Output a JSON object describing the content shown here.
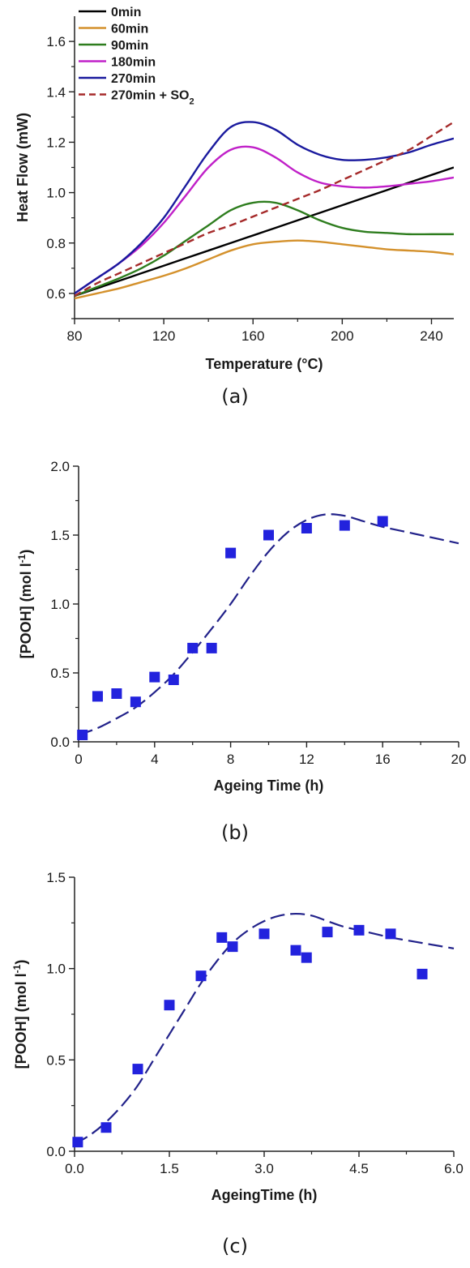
{
  "chart_data": [
    {
      "type": "line",
      "caption": "(a)",
      "xlabel": "Temperature (°C)",
      "ylabel": "Heat Flow (mW)",
      "xlim": [
        80,
        250
      ],
      "ylim": [
        0.5,
        1.7
      ],
      "xticks": [
        80,
        120,
        160,
        200,
        240
      ],
      "yticks": [
        0.6,
        0.8,
        1.0,
        1.2,
        1.4,
        1.6
      ],
      "grid": false,
      "legend_position": "top-left",
      "x": [
        80,
        90,
        100,
        110,
        120,
        130,
        140,
        150,
        160,
        170,
        180,
        190,
        200,
        210,
        220,
        230,
        240,
        250
      ],
      "series": [
        {
          "name": "0min",
          "color": "#000000",
          "dash": "solid",
          "values": [
            0.59,
            0.62,
            0.65,
            0.68,
            0.71,
            0.74,
            0.77,
            0.8,
            0.83,
            0.86,
            0.89,
            0.92,
            0.95,
            0.98,
            1.01,
            1.04,
            1.07,
            1.1
          ]
        },
        {
          "name": "60min",
          "color": "#d4912c",
          "dash": "solid",
          "values": [
            0.58,
            0.6,
            0.62,
            0.645,
            0.67,
            0.7,
            0.735,
            0.77,
            0.795,
            0.805,
            0.81,
            0.805,
            0.795,
            0.785,
            0.775,
            0.77,
            0.765,
            0.755
          ]
        },
        {
          "name": "90min",
          "color": "#2e7d1e",
          "dash": "solid",
          "values": [
            0.59,
            0.625,
            0.66,
            0.7,
            0.75,
            0.81,
            0.87,
            0.93,
            0.96,
            0.96,
            0.93,
            0.89,
            0.86,
            0.845,
            0.84,
            0.835,
            0.835,
            0.835
          ]
        },
        {
          "name": "180min",
          "color": "#c020c8",
          "dash": "solid",
          "values": [
            0.6,
            0.66,
            0.72,
            0.79,
            0.88,
            0.99,
            1.1,
            1.17,
            1.18,
            1.14,
            1.08,
            1.04,
            1.025,
            1.02,
            1.025,
            1.035,
            1.045,
            1.06
          ]
        },
        {
          "name": "270min",
          "color": "#1a1a9e",
          "dash": "solid",
          "values": [
            0.6,
            0.66,
            0.72,
            0.8,
            0.9,
            1.03,
            1.16,
            1.26,
            1.28,
            1.25,
            1.19,
            1.15,
            1.13,
            1.13,
            1.14,
            1.16,
            1.19,
            1.215
          ]
        },
        {
          "name": "270min + SO",
          "name_sub": "2",
          "color": "#a52a2a",
          "dash": "dashed",
          "values": [
            0.59,
            0.64,
            0.68,
            0.72,
            0.76,
            0.8,
            0.84,
            0.87,
            0.905,
            0.94,
            0.975,
            1.01,
            1.05,
            1.09,
            1.13,
            1.17,
            1.225,
            1.28
          ]
        }
      ]
    },
    {
      "type": "scatter",
      "caption": "(b)",
      "xlabel": "Ageing Time (h)",
      "ylabel": "[POOH] (mol l",
      "ylabel_sup": "-1",
      "ylabel_close": ")",
      "xlim": [
        0,
        20
      ],
      "ylim": [
        0,
        2.0
      ],
      "xticks": [
        0,
        4,
        8,
        12,
        16,
        20
      ],
      "yticks": [
        0.0,
        0.5,
        1.0,
        1.5,
        2.0
      ],
      "grid": false,
      "marker_color": "#2222dd",
      "points": {
        "x": [
          0.2,
          1,
          2,
          3,
          4,
          5,
          6,
          7,
          8,
          10,
          12,
          14,
          16
        ],
        "y": [
          0.05,
          0.33,
          0.35,
          0.29,
          0.47,
          0.45,
          0.68,
          0.68,
          1.37,
          1.5,
          1.55,
          1.57,
          1.6
        ]
      },
      "fit": {
        "color": "#22228a",
        "x": [
          0,
          1,
          2,
          3,
          4,
          5,
          6,
          7,
          8,
          9,
          10,
          11,
          12,
          13,
          14,
          15,
          16,
          17,
          18,
          19,
          20
        ],
        "y": [
          0.05,
          0.1,
          0.17,
          0.25,
          0.36,
          0.49,
          0.65,
          0.82,
          1.0,
          1.2,
          1.38,
          1.52,
          1.61,
          1.65,
          1.64,
          1.6,
          1.56,
          1.53,
          1.5,
          1.47,
          1.44
        ]
      }
    },
    {
      "type": "scatter",
      "caption": "(c)",
      "xlabel": "AgeingTime (h)",
      "ylabel": "[POOH] (mol l",
      "ylabel_sup": "-1",
      "ylabel_close": ")",
      "xlim": [
        0,
        6.0
      ],
      "ylim": [
        0,
        1.5
      ],
      "xticks": [
        0.0,
        1.5,
        3.0,
        4.5,
        6.0
      ],
      "yticks": [
        0.0,
        0.5,
        1.0,
        1.5
      ],
      "grid": false,
      "marker_color": "#2222dd",
      "points": {
        "x": [
          0.05,
          0.5,
          1.0,
          1.5,
          2.0,
          2.33,
          2.5,
          3.0,
          3.5,
          3.67,
          4.0,
          4.5,
          5.0,
          5.5
        ],
        "y": [
          0.05,
          0.13,
          0.45,
          0.8,
          0.96,
          1.17,
          1.12,
          1.19,
          1.1,
          1.06,
          1.2,
          1.21,
          1.19,
          0.97
        ]
      },
      "fit": {
        "color": "#22228a",
        "x": [
          0,
          0.25,
          0.5,
          0.75,
          1.0,
          1.25,
          1.5,
          1.75,
          2.0,
          2.25,
          2.5,
          2.75,
          3.0,
          3.25,
          3.5,
          3.75,
          4.0,
          4.25,
          4.5,
          4.75,
          5.0,
          5.25,
          5.5,
          5.75,
          6.0
        ],
        "y": [
          0.04,
          0.09,
          0.16,
          0.25,
          0.36,
          0.5,
          0.64,
          0.78,
          0.92,
          1.04,
          1.14,
          1.21,
          1.26,
          1.29,
          1.3,
          1.29,
          1.26,
          1.23,
          1.21,
          1.19,
          1.17,
          1.155,
          1.14,
          1.125,
          1.11
        ]
      }
    }
  ]
}
